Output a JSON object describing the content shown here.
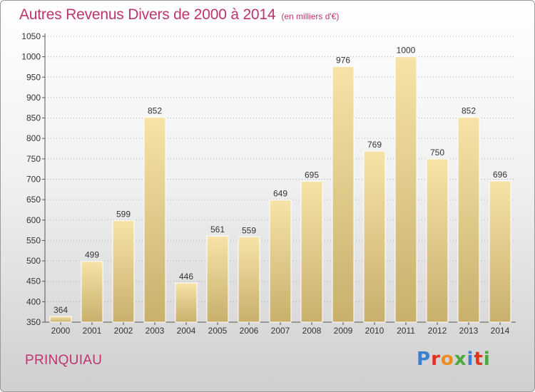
{
  "title": "Autres Revenus Divers de 2000 à 2014",
  "subtitle": "(en milliers d'€)",
  "commune": "PRINQUIAU",
  "logo_text": "Proxiti",
  "colors": {
    "title": "#c0336f",
    "bar_light": "#f7e3a8",
    "bar_dark": "#c8b06c",
    "grid": "#b0b0b0",
    "logo": [
      "#3a7fd0",
      "#e2341d",
      "#f08b1d",
      "#4aa83d",
      "#3a7fd0",
      "#e2341d",
      "#4aa83d"
    ]
  },
  "chart_data": {
    "type": "bar",
    "title": "Autres Revenus Divers de 2000 à 2014",
    "subtitle": "(en milliers d'€)",
    "categories": [
      "2000",
      "2001",
      "2002",
      "2003",
      "2004",
      "2005",
      "2006",
      "2007",
      "2008",
      "2009",
      "2010",
      "2011",
      "2012",
      "2013",
      "2014"
    ],
    "values": [
      364,
      499,
      599,
      852,
      446,
      561,
      559,
      649,
      695,
      976,
      769,
      1000,
      750,
      852,
      696
    ],
    "ylim": [
      350,
      1050
    ],
    "yticks": [
      350,
      400,
      450,
      500,
      550,
      600,
      650,
      700,
      750,
      800,
      850,
      900,
      950,
      1000,
      1050
    ],
    "grid": true,
    "data_labels": true
  }
}
